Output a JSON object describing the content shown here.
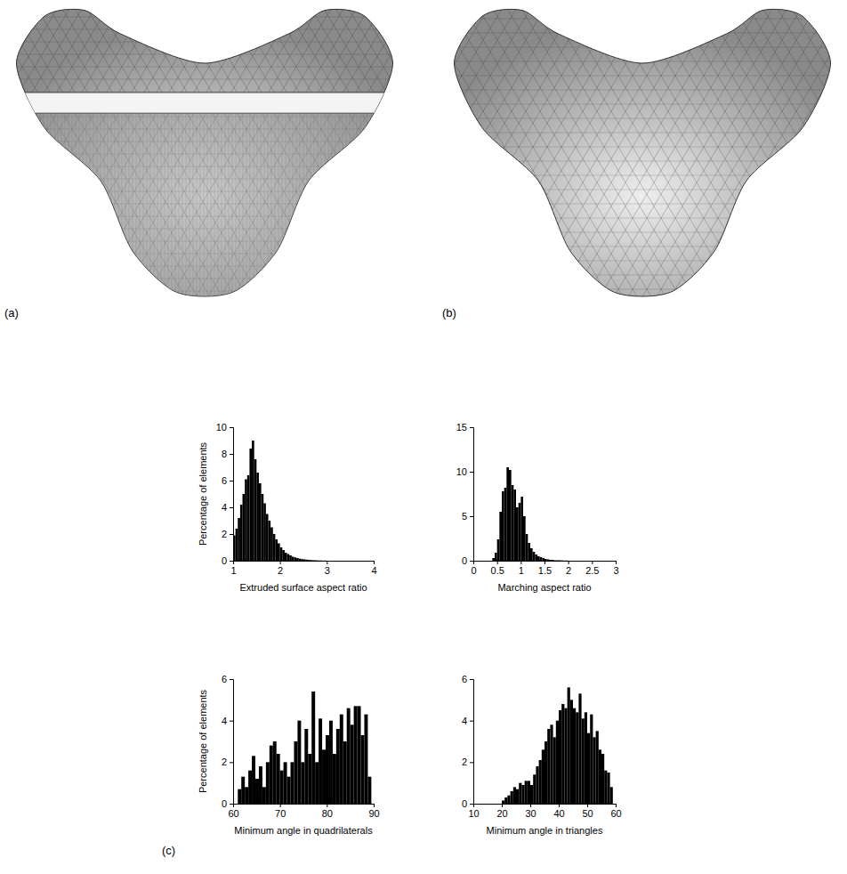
{
  "panel_labels": [
    "(a)",
    "(b)",
    "(c)"
  ],
  "chart_data": [
    {
      "type": "histogram",
      "x_label": "Extruded surface aspect ratio",
      "y_label": "Percentage of elements",
      "color": "#000000",
      "bins": [
        1.0,
        1.05,
        1.1,
        1.15,
        1.2,
        1.25,
        1.3,
        1.35,
        1.4,
        1.45,
        1.5,
        1.55,
        1.6,
        1.65,
        1.7,
        1.75,
        1.8,
        1.85,
        1.9,
        1.95,
        2.0,
        2.05,
        2.1,
        2.15,
        2.2,
        2.25,
        2.3,
        2.35,
        2.4,
        2.45,
        2.5,
        2.55,
        2.6,
        2.65,
        2.7,
        2.75,
        2.8,
        2.85,
        2.9,
        2.95,
        3.0
      ],
      "values": [
        1.9,
        2.4,
        3.2,
        4.2,
        5.0,
        6.1,
        6.4,
        8.4,
        9.0,
        7.6,
        6.6,
        5.8,
        5.0,
        4.3,
        3.5,
        3.0,
        2.5,
        2.0,
        1.6,
        1.3,
        1.0,
        0.8,
        0.6,
        0.5,
        0.4,
        0.3,
        0.25,
        0.2,
        0.15,
        0.12,
        0.1,
        0.08,
        0.06,
        0.05,
        0.04,
        0.03,
        0.02,
        0.02,
        0.01,
        0.01
      ],
      "xlim": [
        1,
        4
      ],
      "xticks": [
        1,
        2,
        3,
        4
      ],
      "ylim": [
        0,
        10
      ],
      "yticks": [
        0,
        2,
        4,
        6,
        8,
        10
      ]
    },
    {
      "type": "histogram",
      "x_label": "Marching aspect ratio",
      "color": "#000000",
      "bins": [
        0.4,
        0.45,
        0.5,
        0.55,
        0.6,
        0.65,
        0.7,
        0.75,
        0.8,
        0.85,
        0.9,
        0.95,
        1.0,
        1.05,
        1.1,
        1.15,
        1.2,
        1.25,
        1.3,
        1.35,
        1.4,
        1.45,
        1.5,
        1.55,
        1.6,
        1.65,
        1.7,
        1.75,
        1.8,
        1.85,
        1.9,
        1.95,
        2.0
      ],
      "values": [
        0.3,
        0.9,
        2.4,
        5.5,
        7.8,
        8.2,
        10.5,
        10.2,
        8.5,
        8.0,
        6.0,
        6.5,
        7.2,
        5.0,
        3.0,
        2.0,
        1.4,
        1.0,
        0.7,
        0.5,
        0.4,
        0.3,
        0.2,
        0.15,
        0.1,
        0.1,
        0.05,
        0.05,
        0.05,
        0.03,
        0.02,
        0.02
      ],
      "xlim": [
        0,
        3
      ],
      "xticks": [
        0,
        0.5,
        1,
        1.5,
        2,
        2.5,
        3
      ],
      "ylim": [
        0,
        15
      ],
      "yticks": [
        0,
        5,
        10,
        15
      ]
    },
    {
      "type": "histogram",
      "x_label": "Minimum angle in quadrilaterals",
      "y_label": "Percentage of elements",
      "color": "#000000",
      "bins": [
        61,
        61.75,
        62.5,
        63.25,
        64,
        64.75,
        65.5,
        66.25,
        67,
        67.75,
        68.5,
        69.25,
        70,
        70.75,
        71.5,
        72.25,
        73,
        73.75,
        74.5,
        75.25,
        76,
        76.75,
        77.5,
        78.25,
        79,
        79.75,
        80.5,
        81.25,
        82,
        82.75,
        83.5,
        84.25,
        85,
        85.75,
        86.5,
        87.25,
        88,
        88.75,
        89.5
      ],
      "values": [
        0.7,
        1.3,
        0.8,
        1.6,
        2.3,
        1.2,
        1.8,
        0.8,
        2.0,
        2.8,
        3.0,
        2.4,
        1.6,
        2.0,
        1.3,
        2.0,
        3.0,
        4.0,
        2.0,
        3.6,
        2.4,
        5.4,
        2.0,
        4.1,
        2.6,
        3.3,
        4.0,
        2.4,
        3.6,
        4.3,
        3.0,
        4.6,
        3.8,
        4.7,
        4.7,
        3.3,
        4.3,
        1.3
      ],
      "xlim": [
        60,
        90
      ],
      "xticks": [
        60,
        70,
        80,
        90
      ],
      "ylim": [
        0,
        6
      ],
      "yticks": [
        0,
        2,
        4,
        6
      ]
    },
    {
      "type": "histogram",
      "x_label": "Minimum angle in triangles",
      "color": "#000000",
      "bins": [
        20,
        21,
        22,
        23,
        24,
        25,
        26,
        27,
        28,
        29,
        30,
        31,
        32,
        33,
        34,
        35,
        36,
        37,
        38,
        39,
        40,
        41,
        42,
        43,
        44,
        45,
        46,
        47,
        48,
        49,
        50,
        51,
        52,
        53,
        54,
        55,
        56,
        57,
        58,
        59
      ],
      "values": [
        0.15,
        0.3,
        0.4,
        0.6,
        0.8,
        0.7,
        1.0,
        0.9,
        1.1,
        1.1,
        0.9,
        1.4,
        1.8,
        2.1,
        2.6,
        3.0,
        3.6,
        3.8,
        3.2,
        4.0,
        4.5,
        4.8,
        4.6,
        5.6,
        5.0,
        4.6,
        4.4,
        5.3,
        4.1,
        4.4,
        3.4,
        4.3,
        3.2,
        3.5,
        2.6,
        2.4,
        1.6,
        1.5,
        0.8
      ],
      "xlim": [
        10,
        60
      ],
      "xticks": [
        10,
        20,
        30,
        40,
        50,
        60
      ],
      "ylim": [
        0,
        6
      ],
      "yticks": [
        0,
        2,
        4,
        6
      ]
    }
  ]
}
